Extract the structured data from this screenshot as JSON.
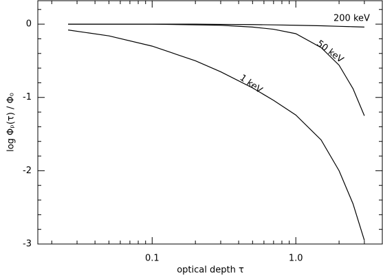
{
  "chart_data": {
    "type": "line",
    "xlabel": "optical depth τ",
    "ylabel": "log Φₚ(τ) / Φ₀",
    "x": [
      0.026,
      0.05,
      0.1,
      0.2,
      0.3,
      0.5,
      0.7,
      1.0,
      1.5,
      2.0,
      2.5,
      3.0
    ],
    "series": [
      {
        "name": "200 keV",
        "color": "#000000",
        "values": [
          0,
          0,
          0,
          0,
          -0.003,
          -0.006,
          -0.01,
          -0.015,
          -0.022,
          -0.03,
          -0.035,
          -0.04
        ]
      },
      {
        "name": "50 keV",
        "color": "#000000",
        "values": [
          0,
          0,
          0,
          -0.01,
          -0.015,
          -0.04,
          -0.07,
          -0.13,
          -0.32,
          -0.56,
          -0.88,
          -1.25
        ]
      },
      {
        "name": "1 keV",
        "color": "#000000",
        "values": [
          -0.08,
          -0.16,
          -0.3,
          -0.5,
          -0.65,
          -0.87,
          -1.04,
          -1.24,
          -1.58,
          -2.0,
          -2.45,
          -2.95
        ]
      }
    ],
    "xscale": "log",
    "xlim": [
      0.016,
      4.0
    ],
    "xticks": [
      0.1,
      {
        "value": 1,
        "label": "1.0"
      }
    ],
    "xminorticks": [
      0.02,
      0.03,
      0.04,
      0.05,
      0.06,
      0.07,
      0.08,
      0.09,
      0.2,
      0.3,
      0.4,
      0.5,
      0.6,
      0.7,
      0.8,
      0.9,
      2,
      3,
      4
    ],
    "ylim": [
      -3,
      0.32
    ],
    "yticks": [
      -3,
      -2,
      -1,
      0
    ],
    "yminorticks": [
      -2.8,
      -2.6,
      -2.4,
      -2.2,
      -1.8,
      -1.6,
      -1.4,
      -1.2,
      -0.8,
      -0.6,
      -0.4,
      -0.2,
      0.2
    ]
  }
}
